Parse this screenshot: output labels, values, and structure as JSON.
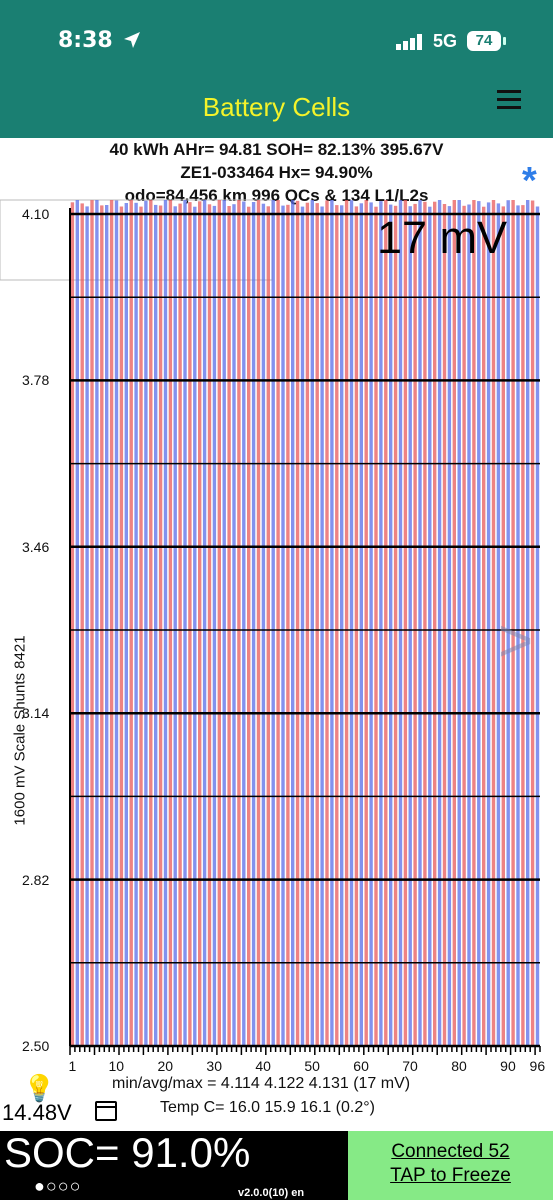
{
  "status": {
    "time": "8:38",
    "network": "5G",
    "battery": "74"
  },
  "header": {
    "title": "Battery Cells"
  },
  "info": {
    "line1": "40 kWh  AHr= 94.81  SOH= 82.13%   395.67V",
    "line2": "ZE1-033464   Hx= 94.90%",
    "line3": "odo=84,456 km 996 QCs & 134 L1/L2s"
  },
  "chart_data": {
    "type": "bar",
    "title": "",
    "spread_label": "17 mV",
    "ylabel": "1600 mV Scale    Shunts 8421",
    "ylim": [
      2.5,
      4.1
    ],
    "yticks": [
      "4.10",
      "3.78",
      "3.46",
      "3.14",
      "2.82",
      "2.50"
    ],
    "xticks": [
      "1",
      "10",
      "20",
      "30",
      "40",
      "50",
      "60",
      "70",
      "80",
      "90",
      "96"
    ],
    "cell_count": 96,
    "min": 4.114,
    "avg": 4.122,
    "max": 4.131,
    "series_colors": [
      "#e85a5a",
      "#5a6ee8"
    ]
  },
  "stats": {
    "minavgmax": "min/avg/max = 4.114 4.122 4.131  (17 mV)",
    "temp": "Temp C= 16.0  15.9  16.1  (0.2°)"
  },
  "footer": {
    "voltage": "14.48V",
    "soc": "SOC= 91.0%",
    "dots": "●○○○",
    "version": "v2.0.0(10) en",
    "connect_line1": "Connected 52",
    "connect_line2": "TAP to Freeze"
  }
}
